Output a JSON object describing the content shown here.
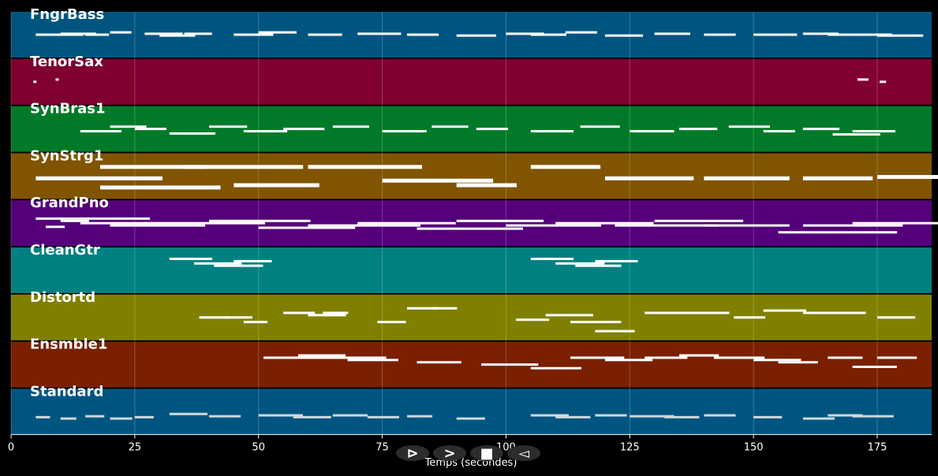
{
  "chart_data": {
    "type": "piano-roll",
    "xlabel": "Temps (secondes)",
    "xlim": [
      0,
      186
    ],
    "xticks": [
      0,
      25,
      50,
      75,
      100,
      125,
      150,
      175
    ],
    "grid": true,
    "tracks": [
      {
        "name": "FngrBass",
        "color": "#005580",
        "notes": [
          [
            5,
            60,
            0.5
          ],
          [
            10,
            45,
            0.48
          ],
          [
            15,
            30,
            0.5
          ],
          [
            20,
            27,
            0.45
          ],
          [
            27,
            48,
            0.48
          ],
          [
            30,
            45,
            0.52
          ],
          [
            35,
            35,
            0.48
          ],
          [
            45,
            50,
            0.5
          ],
          [
            50,
            48,
            0.45
          ],
          [
            60,
            43,
            0.5
          ],
          [
            70,
            55,
            0.48
          ],
          [
            80,
            40,
            0.5
          ],
          [
            90,
            50,
            0.52
          ],
          [
            100,
            48,
            0.48
          ],
          [
            105,
            45,
            0.5
          ],
          [
            112,
            40,
            0.45
          ],
          [
            120,
            48,
            0.52
          ],
          [
            130,
            45,
            0.48
          ],
          [
            140,
            40,
            0.5
          ],
          [
            150,
            55,
            0.5
          ],
          [
            160,
            45,
            0.48
          ],
          [
            165,
            40,
            0.5
          ],
          [
            170,
            50,
            0.5
          ],
          [
            175,
            58,
            0.52
          ]
        ]
      },
      {
        "name": "TenorSax",
        "color": "#800030",
        "notes": [
          [
            4.5,
            4,
            0.5
          ],
          [
            9,
            4,
            0.45
          ],
          [
            171,
            14,
            0.45
          ],
          [
            175.5,
            8,
            0.5
          ]
        ]
      },
      {
        "name": "SynBras1",
        "color": "#007a28",
        "notes": [
          [
            14,
            52,
            0.55
          ],
          [
            20,
            46,
            0.45
          ],
          [
            25,
            40,
            0.5
          ],
          [
            32,
            58,
            0.6
          ],
          [
            40,
            48,
            0.45
          ],
          [
            47,
            55,
            0.55
          ],
          [
            55,
            52,
            0.5
          ],
          [
            65,
            46,
            0.45
          ],
          [
            75,
            56,
            0.55
          ],
          [
            85,
            46,
            0.45
          ],
          [
            94,
            40,
            0.5
          ],
          [
            105,
            54,
            0.55
          ],
          [
            115,
            50,
            0.45
          ],
          [
            125,
            56,
            0.55
          ],
          [
            135,
            48,
            0.5
          ],
          [
            145,
            52,
            0.45
          ],
          [
            152,
            40,
            0.55
          ],
          [
            160,
            46,
            0.5
          ],
          [
            166,
            60,
            0.62
          ],
          [
            170,
            54,
            0.55
          ]
        ]
      },
      {
        "name": "SynStrg1",
        "color": "#805400",
        "notes": [
          [
            5,
            160,
            0.55
          ],
          [
            18,
            134,
            0.3
          ],
          [
            18,
            152,
            0.75
          ],
          [
            35,
            150,
            0.3
          ],
          [
            45,
            108,
            0.7
          ],
          [
            60,
            144,
            0.3
          ],
          [
            75,
            140,
            0.6
          ],
          [
            90,
            76,
            0.7
          ],
          [
            105,
            88,
            0.3
          ],
          [
            120,
            112,
            0.55
          ],
          [
            140,
            108,
            0.55
          ],
          [
            160,
            88,
            0.55
          ],
          [
            175,
            110,
            0.52
          ]
        ]
      },
      {
        "name": "GrandPno",
        "color": "#55007a",
        "notes": [
          [
            5,
            144,
            0.4
          ],
          [
            7,
            24,
            0.58
          ],
          [
            10,
            36,
            0.45
          ],
          [
            14,
            84,
            0.5
          ],
          [
            20,
            120,
            0.55
          ],
          [
            27,
            152,
            0.5
          ],
          [
            40,
            128,
            0.45
          ],
          [
            50,
            122,
            0.6
          ],
          [
            60,
            142,
            0.55
          ],
          [
            70,
            124,
            0.5
          ],
          [
            82,
            134,
            0.62
          ],
          [
            90,
            110,
            0.45
          ],
          [
            100,
            120,
            0.55
          ],
          [
            110,
            124,
            0.5
          ],
          [
            122,
            130,
            0.55
          ],
          [
            130,
            112,
            0.45
          ],
          [
            140,
            108,
            0.55
          ],
          [
            155,
            150,
            0.7
          ],
          [
            160,
            126,
            0.55
          ],
          [
            170,
            128,
            0.5
          ]
        ]
      },
      {
        "name": "CleanGtr",
        "color": "#008080",
        "notes": [
          [
            32,
            54,
            0.25
          ],
          [
            37,
            60,
            0.35
          ],
          [
            41,
            62,
            0.4
          ],
          [
            45,
            48,
            0.3
          ],
          [
            105,
            54,
            0.25
          ],
          [
            110,
            62,
            0.35
          ],
          [
            114,
            58,
            0.4
          ],
          [
            118,
            54,
            0.3
          ]
        ]
      },
      {
        "name": "Distortd",
        "color": "#808000",
        "notes": [
          [
            38,
            40,
            0.5
          ],
          [
            43,
            36,
            0.5
          ],
          [
            47,
            30,
            0.6
          ],
          [
            55,
            40,
            0.4
          ],
          [
            60,
            48,
            0.45
          ],
          [
            63,
            32,
            0.4
          ],
          [
            74,
            36,
            0.6
          ],
          [
            80,
            40,
            0.3
          ],
          [
            85,
            32,
            0.3
          ],
          [
            102,
            42,
            0.55
          ],
          [
            108,
            60,
            0.45
          ],
          [
            113,
            64,
            0.6
          ],
          [
            118,
            50,
            0.8
          ],
          [
            128,
            42,
            0.4
          ],
          [
            133,
            44,
            0.4
          ],
          [
            140,
            32,
            0.4
          ],
          [
            146,
            40,
            0.5
          ],
          [
            152,
            54,
            0.35
          ],
          [
            160,
            44,
            0.4
          ],
          [
            165,
            48,
            0.4
          ],
          [
            175,
            48,
            0.5
          ]
        ]
      },
      {
        "name": "Ensmble1",
        "color": "#7a2000",
        "notes": [
          [
            51,
            76,
            0.35
          ],
          [
            58,
            60,
            0.3
          ],
          [
            63,
            80,
            0.35
          ],
          [
            68,
            64,
            0.4
          ],
          [
            82,
            56,
            0.45
          ],
          [
            95,
            72,
            0.5
          ],
          [
            105,
            64,
            0.58
          ],
          [
            113,
            68,
            0.35
          ],
          [
            120,
            60,
            0.4
          ],
          [
            128,
            54,
            0.35
          ],
          [
            135,
            50,
            0.3
          ],
          [
            142,
            64,
            0.35
          ],
          [
            150,
            60,
            0.4
          ],
          [
            155,
            50,
            0.45
          ],
          [
            165,
            44,
            0.35
          ],
          [
            170,
            56,
            0.55
          ],
          [
            175,
            50,
            0.35
          ]
        ]
      },
      {
        "name": "Standard",
        "color": "#005580",
        "notes": [
          [
            5,
            18,
            0.62
          ],
          [
            10,
            20,
            0.65
          ],
          [
            15,
            24,
            0.6
          ],
          [
            20,
            28,
            0.65
          ],
          [
            25,
            24,
            0.62
          ],
          [
            32,
            48,
            0.55
          ],
          [
            40,
            40,
            0.6
          ],
          [
            50,
            56,
            0.58
          ],
          [
            57,
            48,
            0.62
          ],
          [
            65,
            44,
            0.58
          ],
          [
            72,
            40,
            0.62
          ],
          [
            80,
            32,
            0.6
          ],
          [
            90,
            36,
            0.65
          ],
          [
            105,
            48,
            0.58
          ],
          [
            110,
            44,
            0.62
          ],
          [
            118,
            40,
            0.58
          ],
          [
            125,
            56,
            0.6
          ],
          [
            132,
            44,
            0.62
          ],
          [
            140,
            40,
            0.58
          ],
          [
            150,
            36,
            0.62
          ],
          [
            160,
            40,
            0.65
          ],
          [
            165,
            44,
            0.58
          ],
          [
            170,
            52,
            0.6
          ]
        ]
      }
    ]
  },
  "controls": [
    {
      "icon": "play-outline-icon",
      "glyph": "⊳"
    },
    {
      "icon": "play-icon",
      "glyph": ">"
    },
    {
      "icon": "stop-icon",
      "glyph": "■"
    },
    {
      "icon": "rewind-icon",
      "glyph": "◅"
    }
  ]
}
